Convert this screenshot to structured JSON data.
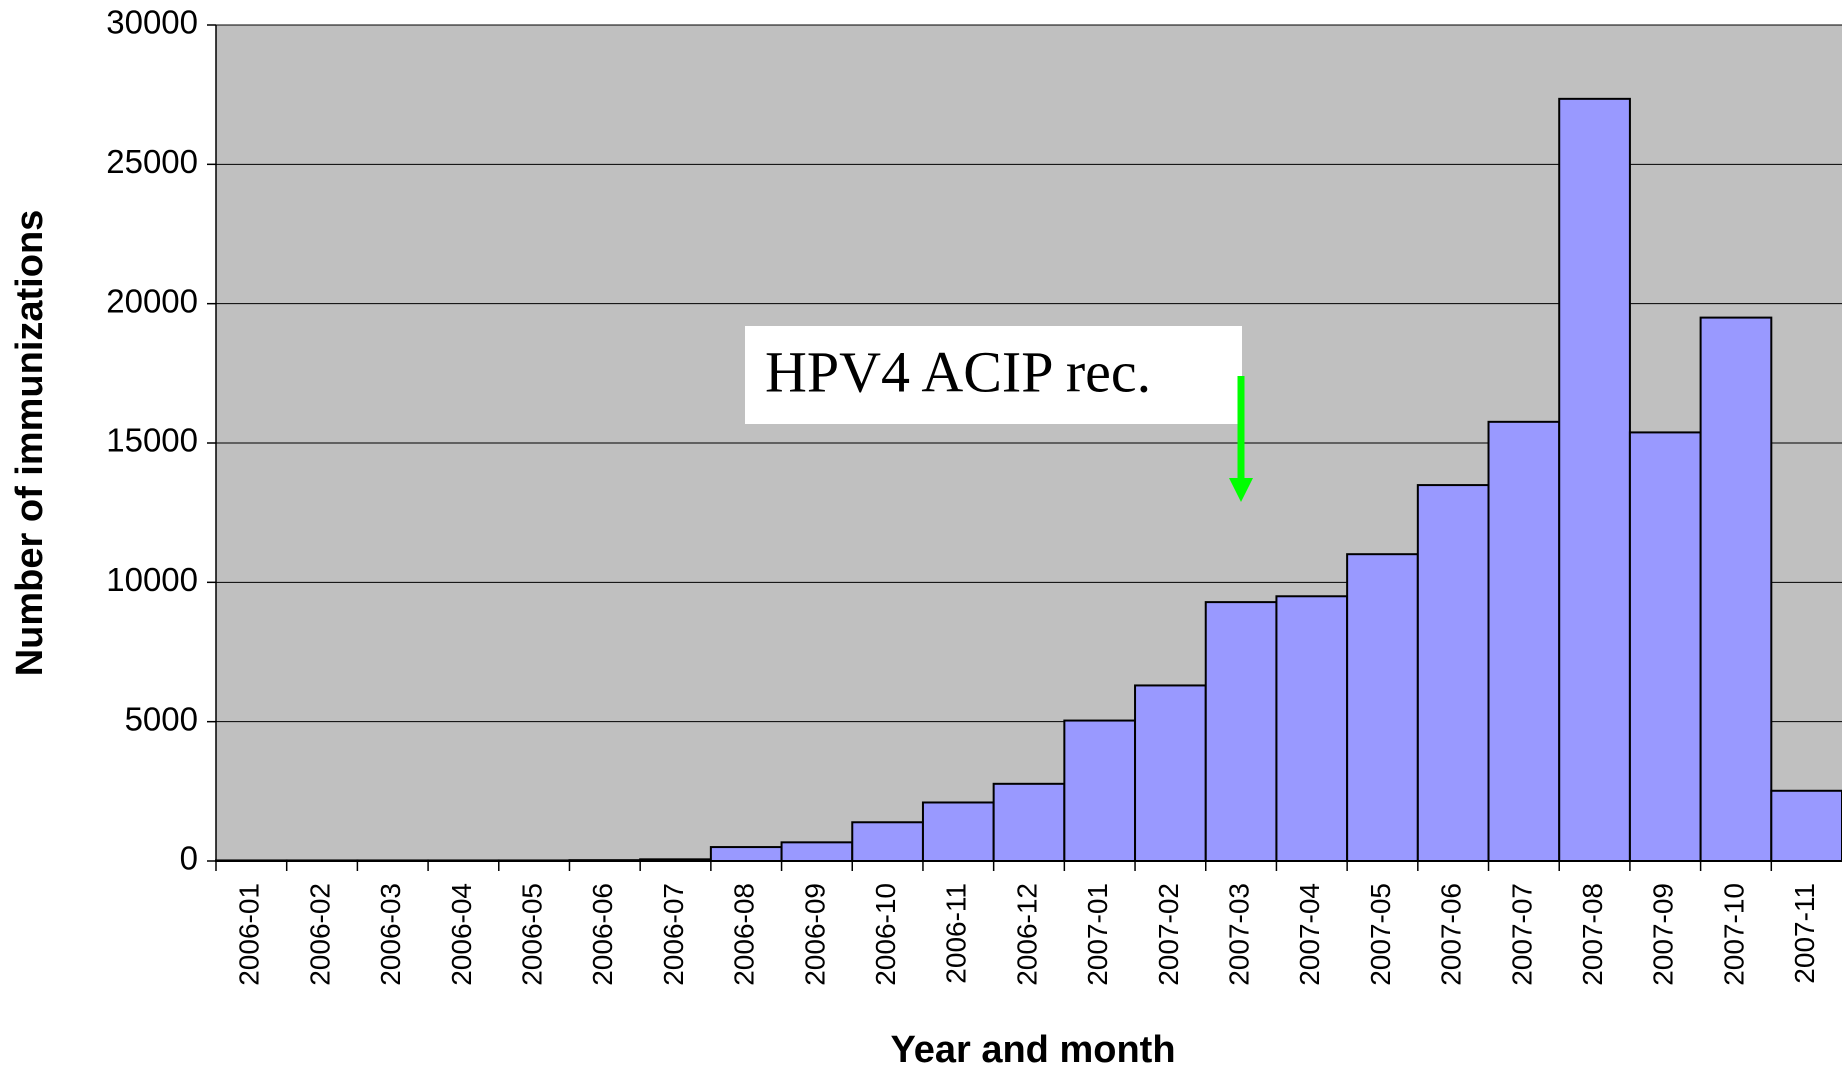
{
  "chart_data": {
    "type": "bar",
    "xlabel": "Year and month",
    "ylabel": "Number of immunizations",
    "annotation": "HPV4 ACIP rec.",
    "categories": [
      "2006-01",
      "2006-02",
      "2006-03",
      "2006-04",
      "2006-05",
      "2006-06",
      "2006-07",
      "2006-08",
      "2006-09",
      "2006-10",
      "2006-11",
      "2006-12",
      "2007-01",
      "2007-02",
      "2007-03",
      "2007-04",
      "2007-05",
      "2007-06",
      "2007-07",
      "2007-08",
      "2007-09",
      "2007-10",
      "2007-11"
    ],
    "values": [
      20,
      20,
      20,
      20,
      20,
      30,
      60,
      500,
      670,
      1390,
      2100,
      2770,
      5040,
      6300,
      9290,
      9500,
      11010,
      13490,
      15760,
      27350,
      15380,
      19500,
      2520
    ],
    "color": "#9999ff",
    "ylim": [
      0,
      30000
    ],
    "yticks": [
      0,
      5000,
      10000,
      15000,
      20000,
      25000,
      30000
    ],
    "grid": true
  }
}
